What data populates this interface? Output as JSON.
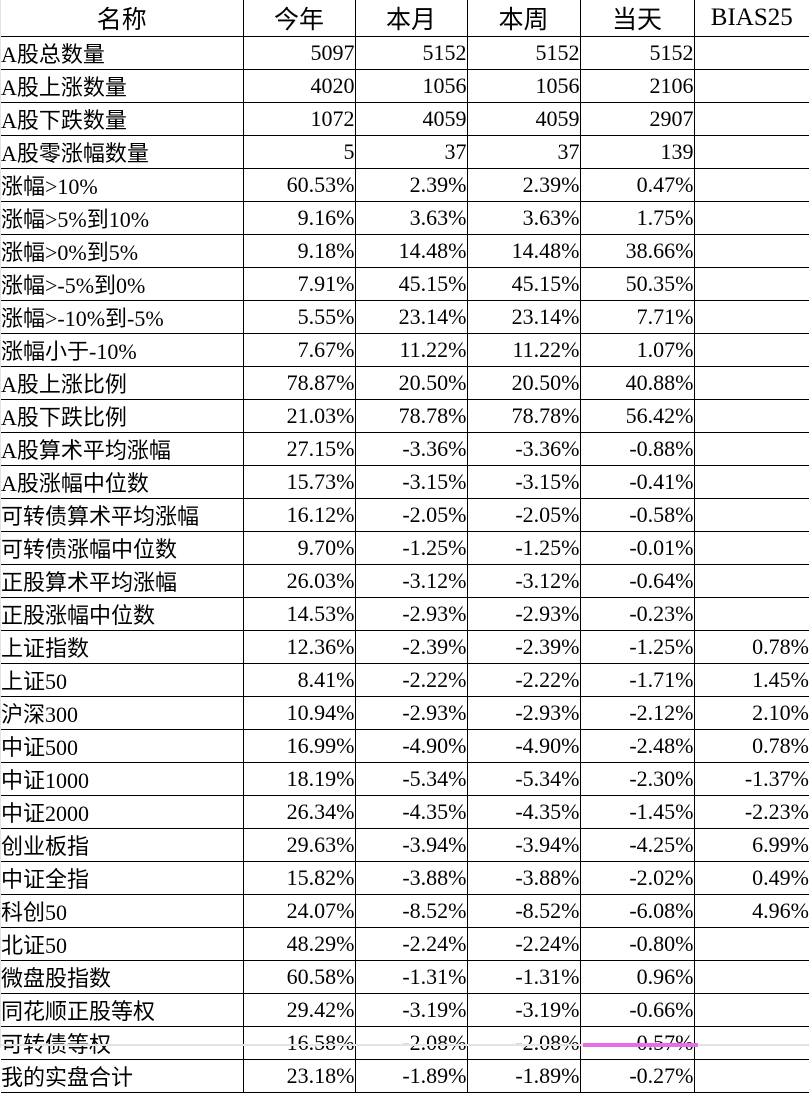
{
  "table": {
    "columns": [
      "名称",
      "今年",
      "本月",
      "本周",
      "当天",
      "BIAS25"
    ],
    "rows": [
      {
        "name": "A股总数量",
        "values": [
          "5097",
          "5152",
          "5152",
          "5152",
          ""
        ]
      },
      {
        "name": "A股上涨数量",
        "values": [
          "4020",
          "1056",
          "1056",
          "2106",
          ""
        ]
      },
      {
        "name": "A股下跌数量",
        "values": [
          "1072",
          "4059",
          "4059",
          "2907",
          ""
        ]
      },
      {
        "name": "A股零涨幅数量",
        "values": [
          "5",
          "37",
          "37",
          "139",
          ""
        ]
      },
      {
        "name": "涨幅>10%",
        "values": [
          "60.53%",
          "2.39%",
          "2.39%",
          "0.47%",
          ""
        ]
      },
      {
        "name": "涨幅>5%到10%",
        "values": [
          "9.16%",
          "3.63%",
          "3.63%",
          "1.75%",
          ""
        ]
      },
      {
        "name": "涨幅>0%到5%",
        "values": [
          "9.18%",
          "14.48%",
          "14.48%",
          "38.66%",
          ""
        ]
      },
      {
        "name": "涨幅>-5%到0%",
        "values": [
          "7.91%",
          "45.15%",
          "45.15%",
          "50.35%",
          ""
        ]
      },
      {
        "name": "涨幅>-10%到-5%",
        "values": [
          "5.55%",
          "23.14%",
          "23.14%",
          "7.71%",
          ""
        ]
      },
      {
        "name": "涨幅小于-10%",
        "values": [
          "7.67%",
          "11.22%",
          "11.22%",
          "1.07%",
          ""
        ]
      },
      {
        "name": "A股上涨比例",
        "values": [
          "78.87%",
          "20.50%",
          "20.50%",
          "40.88%",
          ""
        ]
      },
      {
        "name": "A股下跌比例",
        "values": [
          "21.03%",
          "78.78%",
          "78.78%",
          "56.42%",
          ""
        ]
      },
      {
        "name": "A股算术平均涨幅",
        "values": [
          "27.15%",
          "-3.36%",
          "-3.36%",
          "-0.88%",
          ""
        ]
      },
      {
        "name": "A股涨幅中位数",
        "values": [
          "15.73%",
          "-3.15%",
          "-3.15%",
          "-0.41%",
          ""
        ]
      },
      {
        "name": "可转债算术平均涨幅",
        "values": [
          "16.12%",
          "-2.05%",
          "-2.05%",
          "-0.58%",
          ""
        ]
      },
      {
        "name": "可转债涨幅中位数",
        "values": [
          "9.70%",
          "-1.25%",
          "-1.25%",
          "-0.01%",
          ""
        ]
      },
      {
        "name": "正股算术平均涨幅",
        "values": [
          "26.03%",
          "-3.12%",
          "-3.12%",
          "-0.64%",
          ""
        ]
      },
      {
        "name": "正股涨幅中位数",
        "values": [
          "14.53%",
          "-2.93%",
          "-2.93%",
          "-0.23%",
          ""
        ]
      },
      {
        "name": "上证指数",
        "values": [
          "12.36%",
          "-2.39%",
          "-2.39%",
          "-1.25%",
          "0.78%"
        ]
      },
      {
        "name": "上证50",
        "values": [
          "8.41%",
          "-2.22%",
          "-2.22%",
          "-1.71%",
          "1.45%"
        ]
      },
      {
        "name": "沪深300",
        "values": [
          "10.94%",
          "-2.93%",
          "-2.93%",
          "-2.12%",
          "2.10%"
        ]
      },
      {
        "name": "中证500",
        "values": [
          "16.99%",
          "-4.90%",
          "-4.90%",
          "-2.48%",
          "0.78%"
        ]
      },
      {
        "name": "中证1000",
        "values": [
          "18.19%",
          "-5.34%",
          "-5.34%",
          "-2.30%",
          "-1.37%"
        ]
      },
      {
        "name": "中证2000",
        "values": [
          "26.34%",
          "-4.35%",
          "-4.35%",
          "-1.45%",
          "-2.23%"
        ]
      },
      {
        "name": "创业板指",
        "values": [
          "29.63%",
          "-3.94%",
          "-3.94%",
          "-4.25%",
          "6.99%"
        ]
      },
      {
        "name": "中证全指",
        "values": [
          "15.82%",
          "-3.88%",
          "-3.88%",
          "-2.02%",
          "0.49%"
        ]
      },
      {
        "name": "科创50",
        "values": [
          "24.07%",
          "-8.52%",
          "-8.52%",
          "-6.08%",
          "4.96%"
        ]
      },
      {
        "name": "北证50",
        "values": [
          "48.29%",
          "-2.24%",
          "-2.24%",
          "-0.80%",
          ""
        ]
      },
      {
        "name": "微盘股指数",
        "values": [
          "60.58%",
          "-1.31%",
          "-1.31%",
          "0.96%",
          ""
        ]
      },
      {
        "name": "同花顺正股等权",
        "values": [
          "29.42%",
          "-3.19%",
          "-3.19%",
          "-0.66%",
          ""
        ]
      },
      {
        "name": "可转债等权",
        "values": [
          "16.58%",
          "-2.08%",
          "-2.08%",
          "-0.57%",
          ""
        ]
      },
      {
        "name": "我的实盘合计",
        "values": [
          "23.18%",
          "-1.89%",
          "-1.89%",
          "-0.27%",
          ""
        ]
      }
    ]
  },
  "colors": {
    "grid": "#000000",
    "text": "#000000",
    "background": "#ffffff",
    "sheet_edge": "#e3e3e3",
    "selection_mark": "#e76fe3"
  }
}
